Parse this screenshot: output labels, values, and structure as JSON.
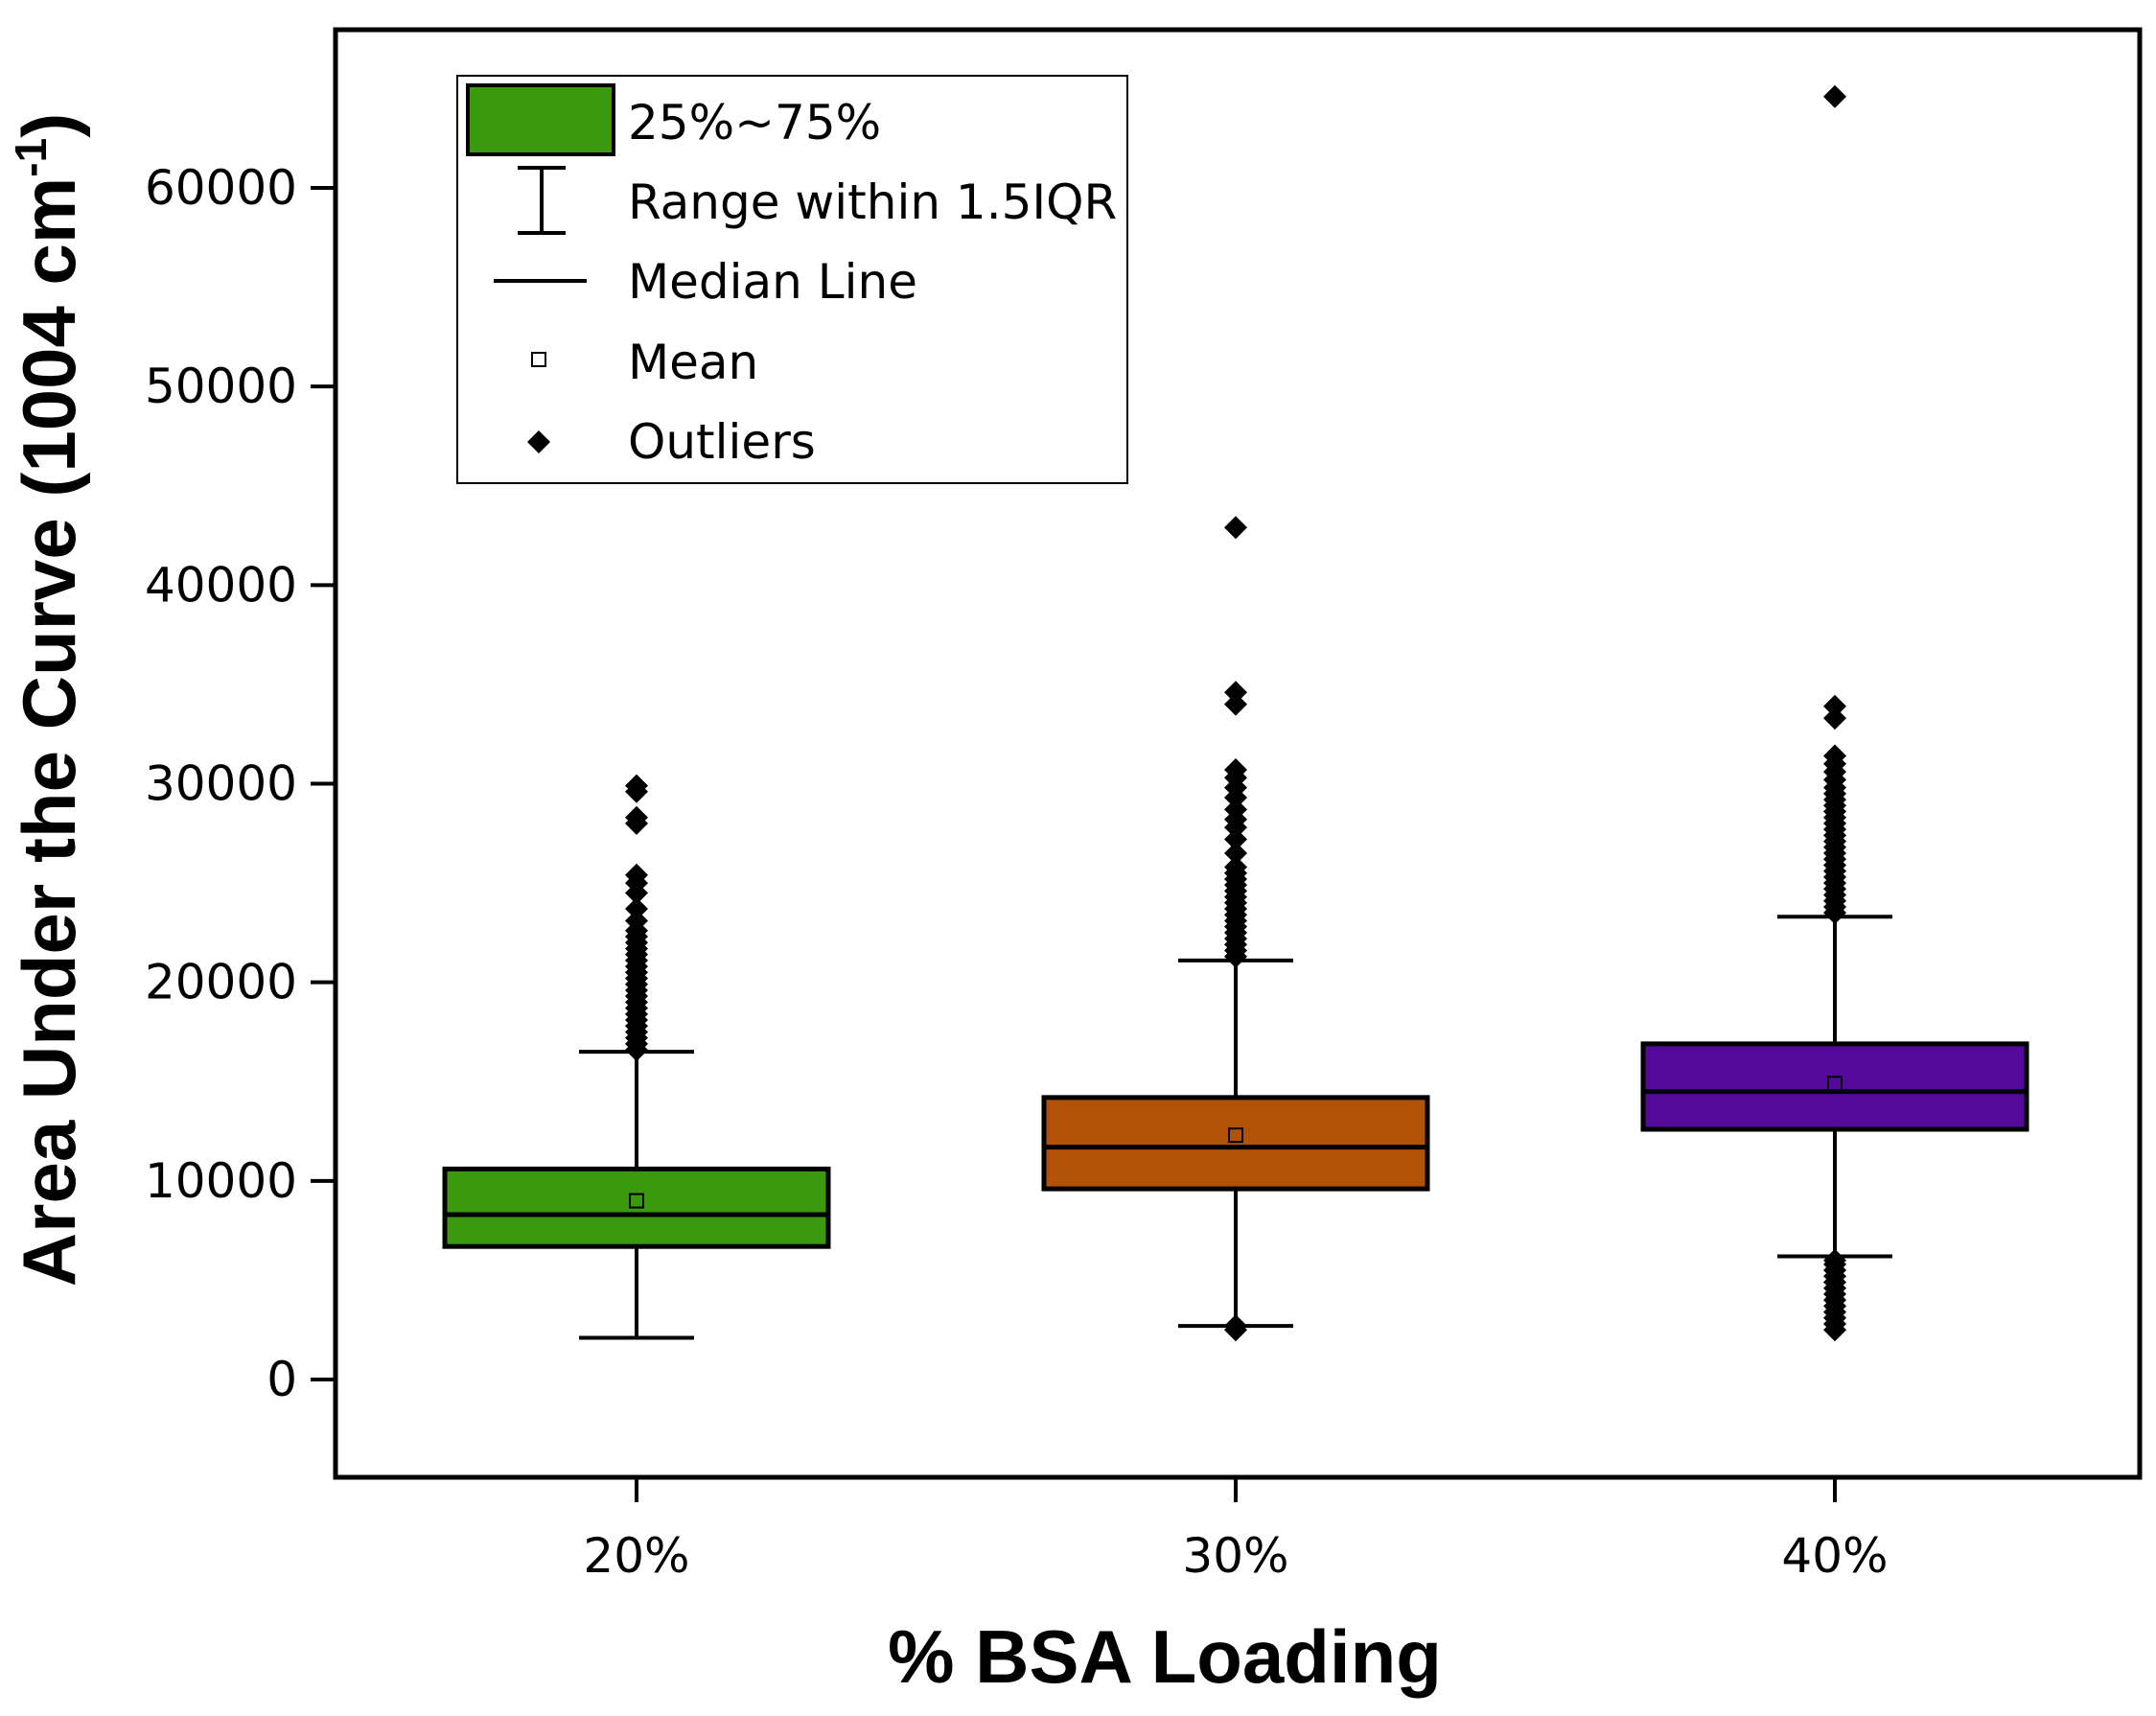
{
  "chart_data": {
    "type": "box",
    "xlabel": "% BSA Loading",
    "ylabel_main": "Area Under the Curve (1004 cm",
    "ylabel_sup": "-1",
    "ylabel_close": ")",
    "ylim": [
      -5000,
      68000
    ],
    "yticks": [
      0,
      10000,
      20000,
      30000,
      40000,
      50000,
      60000
    ],
    "ytick_labels": [
      "0",
      "10000",
      "20000",
      "30000",
      "40000",
      "50000",
      "60000"
    ],
    "categories": [
      "20%",
      "30%",
      "40%"
    ],
    "legend": {
      "position": "top-left",
      "items": [
        {
          "label": "25%~75%",
          "kind": "box"
        },
        {
          "label": "Range within 1.5IQR",
          "kind": "whisker"
        },
        {
          "label": "Median Line",
          "kind": "line"
        },
        {
          "label": "Mean",
          "kind": "mean"
        },
        {
          "label": "Outliers",
          "kind": "outlier"
        }
      ]
    },
    "boxes": [
      {
        "category": "20%",
        "color": "#3a990d",
        "q1": 6700,
        "median": 8300,
        "q3": 10600,
        "whisker_low": 2100,
        "whisker_high": 16500,
        "mean": 9000,
        "outliers": [
          16600,
          16900,
          17200,
          17500,
          17800,
          18100,
          18400,
          18700,
          19000,
          19300,
          19600,
          19900,
          20200,
          20500,
          20800,
          21100,
          21400,
          21700,
          22000,
          22300,
          22600,
          23100,
          23700,
          24500,
          25000,
          25400,
          28000,
          28300,
          29600,
          29900
        ]
      },
      {
        "category": "30%",
        "color": "#b25209",
        "q1": 9600,
        "median": 11700,
        "q3": 14200,
        "whisker_low": 2700,
        "whisker_high": 21100,
        "mean": 12300,
        "outliers": [
          2500,
          2700,
          21300,
          21600,
          21900,
          22200,
          22500,
          22800,
          23100,
          23400,
          23700,
          24000,
          24300,
          24600,
          24900,
          25200,
          25500,
          25800,
          26500,
          27200,
          27800,
          28200,
          28700,
          29300,
          29800,
          30300,
          30700,
          34000,
          34600,
          42900
        ]
      },
      {
        "category": "40%",
        "color": "#55099a",
        "q1": 12600,
        "median": 14500,
        "q3": 16900,
        "whisker_low": 6200,
        "whisker_high": 23300,
        "mean": 14900,
        "outliers": [
          2500,
          2800,
          3100,
          3400,
          3700,
          4000,
          4300,
          4600,
          4900,
          5200,
          5500,
          5800,
          6000,
          23500,
          23800,
          24100,
          24400,
          24700,
          25000,
          25300,
          25600,
          25900,
          26200,
          26500,
          26800,
          27100,
          27400,
          27700,
          28000,
          28300,
          28600,
          28900,
          29200,
          29500,
          29800,
          30200,
          30600,
          31000,
          31400,
          33300,
          33900,
          64600
        ]
      }
    ]
  }
}
